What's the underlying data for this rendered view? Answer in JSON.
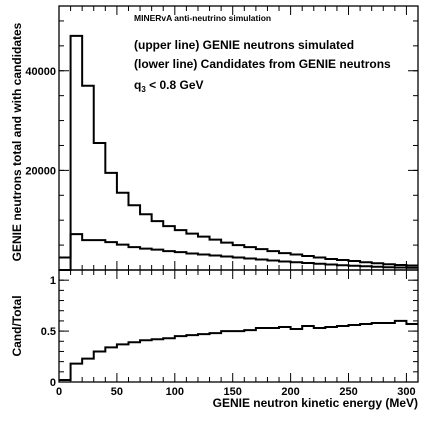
{
  "chart_data": [
    {
      "type": "line",
      "panel": "upper",
      "ylabel": "GENIE neutrons total and with candidates",
      "xlim": [
        0,
        310
      ],
      "ylim": [
        0,
        53000
      ],
      "x_ticks": [
        0,
        50,
        100,
        150,
        200,
        250,
        300
      ],
      "y_ticks": [
        20000,
        40000
      ],
      "y_tick_labels": [
        "20000",
        "40000"
      ],
      "annotations": [
        "MINERvA anti-neutrino simulation",
        "(upper line) GENIE neutrons simulated",
        "(lower line) Candidates from GENIE neutrons",
        "q3 < 0.8 GeV"
      ],
      "bin_edges": [
        0,
        10,
        20,
        30,
        40,
        50,
        60,
        70,
        80,
        90,
        100,
        110,
        120,
        130,
        140,
        150,
        160,
        170,
        180,
        190,
        200,
        210,
        220,
        230,
        240,
        250,
        260,
        270,
        280,
        290,
        300,
        310
      ],
      "series": [
        {
          "values": [
            2500,
            47000,
            37000,
            25500,
            19500,
            15500,
            13000,
            11200,
            9800,
            8800,
            8000,
            7300,
            6700,
            6100,
            5500,
            5000,
            4600,
            4200,
            3800,
            3400,
            3100,
            2800,
            2500,
            2200,
            2000,
            1800,
            1550,
            1350,
            1150,
            1000,
            900
          ]
        },
        {
          "values": [
            0,
            7200,
            6000,
            6000,
            5600,
            5100,
            4600,
            4300,
            4100,
            3800,
            3600,
            3300,
            3100,
            2900,
            2700,
            2500,
            2300,
            2100,
            1900,
            1700,
            1550,
            1400,
            1250,
            1100,
            950,
            850,
            750,
            650,
            550,
            500,
            450
          ]
        }
      ],
      "legend": "none",
      "grid": false
    },
    {
      "type": "line",
      "panel": "lower",
      "xlabel": "GENIE neutron kinetic energy (MeV)",
      "ylabel": "Cand/Total",
      "xlim": [
        0,
        310
      ],
      "ylim": [
        0,
        1.1
      ],
      "x_ticks": [
        0,
        50,
        100,
        150,
        200,
        250,
        300
      ],
      "x_tick_labels": [
        "0",
        "50",
        "100",
        "150",
        "200",
        "250",
        "300"
      ],
      "y_ticks": [
        0,
        0.5,
        1
      ],
      "y_tick_labels": [
        "0",
        "0.5",
        "1"
      ],
      "bin_edges": [
        0,
        10,
        20,
        30,
        40,
        50,
        60,
        70,
        80,
        90,
        100,
        110,
        120,
        130,
        140,
        150,
        160,
        170,
        180,
        190,
        200,
        210,
        220,
        230,
        240,
        250,
        260,
        270,
        280,
        290,
        300,
        310
      ],
      "series": [
        {
          "values": [
            0.02,
            0.18,
            0.23,
            0.3,
            0.34,
            0.37,
            0.39,
            0.41,
            0.42,
            0.43,
            0.45,
            0.46,
            0.47,
            0.48,
            0.5,
            0.5,
            0.51,
            0.53,
            0.53,
            0.54,
            0.52,
            0.55,
            0.53,
            0.54,
            0.55,
            0.56,
            0.57,
            0.58,
            0.58,
            0.6,
            0.57
          ]
        }
      ],
      "legend": "none",
      "grid": false
    }
  ]
}
